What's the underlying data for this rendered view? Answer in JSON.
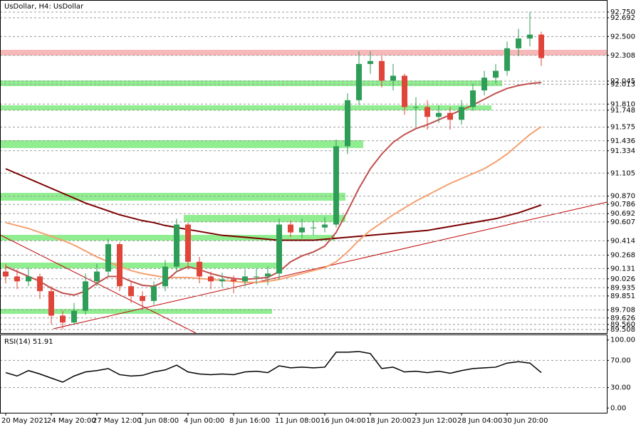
{
  "chart_data": [
    {
      "type": "candlestick",
      "title": "UsDollar, H4:  UsDollar",
      "categories": [
        "20 May 2021",
        null,
        null,
        null,
        "24 May 20:00",
        null,
        null,
        null,
        "27 May 12:00",
        null,
        null,
        null,
        "1 Jun 08:00",
        null,
        null,
        null,
        "4 Jun 00:00",
        null,
        null,
        null,
        "8 Jun 16:00",
        null,
        null,
        null,
        "11 Jun 08:00",
        null,
        null,
        null,
        "16 Jun 04:00",
        null,
        null,
        null,
        "18 Jun 20:00",
        null,
        null,
        null,
        "23 Jun 12:00",
        null,
        null,
        null,
        "28 Jun 04:00",
        null,
        null,
        null,
        "30 Jun 20:00",
        null,
        null,
        null
      ],
      "open": [
        90.1,
        90.05,
        90.0,
        90.05,
        89.9,
        89.65,
        89.58,
        89.7,
        90.0,
        90.1,
        90.38,
        89.95,
        89.85,
        89.8,
        89.95,
        90.15,
        90.58,
        90.2,
        90.05,
        90.0,
        90.02,
        90.0,
        90.05,
        90.05,
        90.08,
        90.58,
        90.5,
        90.55,
        90.55,
        90.58,
        91.38,
        91.85,
        92.22,
        92.25,
        92.05,
        92.1,
        91.78,
        91.78,
        91.68,
        91.72,
        91.65,
        91.78,
        91.95,
        92.08,
        92.15,
        92.38,
        92.48,
        92.52
      ],
      "high": [
        90.18,
        90.12,
        90.14,
        90.08,
        89.95,
        89.7,
        89.78,
        90.08,
        90.18,
        90.43,
        90.4,
        90.0,
        89.9,
        90.0,
        90.22,
        90.64,
        90.6,
        90.25,
        90.1,
        90.09,
        90.06,
        90.12,
        90.13,
        90.15,
        90.64,
        90.62,
        90.64,
        90.62,
        90.66,
        91.45,
        91.92,
        92.35,
        92.35,
        92.3,
        92.22,
        92.12,
        91.88,
        91.85,
        91.8,
        91.78,
        91.85,
        92.02,
        92.15,
        92.22,
        92.45,
        92.58,
        92.75,
        92.55
      ],
      "low": [
        89.98,
        89.92,
        89.95,
        89.82,
        89.56,
        89.51,
        89.55,
        89.66,
        89.95,
        90.05,
        89.9,
        89.78,
        89.71,
        89.76,
        89.9,
        90.1,
        90.12,
        89.98,
        89.92,
        89.94,
        89.88,
        89.95,
        89.97,
        89.96,
        90.02,
        90.45,
        90.44,
        90.47,
        90.5,
        90.55,
        91.3,
        91.8,
        92.12,
        91.98,
        91.95,
        91.7,
        91.58,
        91.55,
        91.62,
        91.55,
        91.6,
        91.74,
        91.9,
        92.02,
        92.1,
        92.3,
        92.4,
        92.2
      ],
      "close": [
        90.05,
        90.0,
        90.05,
        89.9,
        89.65,
        89.58,
        89.7,
        90.0,
        90.1,
        90.38,
        89.95,
        89.85,
        89.8,
        89.95,
        90.15,
        90.58,
        90.2,
        90.05,
        90.0,
        90.02,
        90.0,
        90.05,
        90.05,
        90.08,
        90.58,
        90.5,
        90.55,
        90.55,
        90.58,
        91.38,
        91.85,
        92.22,
        92.25,
        92.05,
        92.1,
        91.78,
        91.78,
        91.68,
        91.72,
        91.65,
        91.78,
        91.95,
        92.08,
        92.15,
        92.38,
        92.48,
        92.52,
        92.28
      ],
      "up_color": "#2e9d57",
      "down_color": "#e0453a",
      "series": [
        {
          "color": "#7a0000",
          "values": [
            91.15,
            91.1,
            91.05,
            91.0,
            90.95,
            90.9,
            90.85,
            90.8,
            90.76,
            90.72,
            90.68,
            90.65,
            90.62,
            90.6,
            90.57,
            90.55,
            90.53,
            90.51,
            90.49,
            90.47,
            90.46,
            90.45,
            90.44,
            90.43,
            90.42,
            90.42,
            90.42,
            90.42,
            90.43,
            90.44,
            90.45,
            90.46,
            90.47,
            90.48,
            90.49,
            90.5,
            90.51,
            90.52,
            90.54,
            90.56,
            90.58,
            90.6,
            90.62,
            90.64,
            90.67,
            90.7,
            90.74,
            90.78
          ]
        },
        {
          "color": "#f5a070",
          "values": [
            90.6,
            90.57,
            90.54,
            90.5,
            90.46,
            90.42,
            90.37,
            90.31,
            90.25,
            90.2,
            90.15,
            90.11,
            90.08,
            90.06,
            90.04,
            90.04,
            90.04,
            90.03,
            90.02,
            90.01,
            90.0,
            89.99,
            89.99,
            90.0,
            90.02,
            90.05,
            90.08,
            90.11,
            90.14,
            90.2,
            90.3,
            90.42,
            90.52,
            90.6,
            90.68,
            90.75,
            90.82,
            90.88,
            90.94,
            91.0,
            91.05,
            91.1,
            91.15,
            91.22,
            91.3,
            91.4,
            91.5,
            91.58
          ]
        },
        {
          "color": "#c0504d",
          "values": [
            90.15,
            90.1,
            90.05,
            90.0,
            89.93,
            89.88,
            89.86,
            89.9,
            89.98,
            90.05,
            90.05,
            90.0,
            89.96,
            89.95,
            90.0,
            90.1,
            90.15,
            90.12,
            90.08,
            90.05,
            90.03,
            90.02,
            90.03,
            90.04,
            90.1,
            90.2,
            90.26,
            90.3,
            90.36,
            90.5,
            90.72,
            90.95,
            91.15,
            91.3,
            91.42,
            91.5,
            91.56,
            91.6,
            91.65,
            91.7,
            91.75,
            91.8,
            91.86,
            91.92,
            91.97,
            92.0,
            92.02,
            92.03
          ]
        }
      ],
      "ylim": [
        89.472,
        92.866
      ],
      "yticks": [
        {
          "value": 92.75,
          "label": "92.750"
        },
        {
          "value": 92.692,
          "label": "92.692"
        },
        {
          "value": 92.5,
          "label": "92.500"
        },
        {
          "value": 92.308,
          "label": "92.308"
        },
        {
          "value": 92.045,
          "label": "92.045"
        },
        {
          "value": 92.013,
          "label": "92.013"
        },
        {
          "value": 91.81,
          "label": "91.810"
        },
        {
          "value": 91.748,
          "label": "91.748"
        },
        {
          "value": 91.575,
          "label": "91.575"
        },
        {
          "value": 91.436,
          "label": "91.436"
        },
        {
          "value": 91.334,
          "label": "91.334"
        },
        {
          "value": 91.105,
          "label": "91.105"
        },
        {
          "value": 90.87,
          "label": "90.870"
        },
        {
          "value": 90.786,
          "label": "90.786"
        },
        {
          "value": 90.692,
          "label": "90.692"
        },
        {
          "value": 90.607,
          "label": "90.607"
        },
        {
          "value": 90.414,
          "label": "90.414"
        },
        {
          "value": 90.268,
          "label": "90.268"
        },
        {
          "value": 90.131,
          "label": "90.131"
        },
        {
          "value": 90.026,
          "label": "90.026"
        },
        {
          "value": 89.935,
          "label": "89.935"
        },
        {
          "value": 89.851,
          "label": "89.851"
        },
        {
          "value": 89.708,
          "label": "89.708"
        },
        {
          "value": 89.626,
          "label": "89.626"
        },
        {
          "value": 89.56,
          "label": "89.560"
        },
        {
          "value": 89.508,
          "label": "89.508"
        }
      ],
      "grid": true
    },
    {
      "type": "line",
      "title": "RSI(14) 51.91",
      "color": "#000000",
      "values": [
        52,
        47,
        55,
        50,
        44,
        38,
        47,
        53,
        55,
        58,
        49,
        47,
        48,
        53,
        56,
        63,
        53,
        50,
        49,
        50,
        49,
        53,
        54,
        52,
        62,
        59,
        60,
        59,
        60,
        82,
        82,
        83,
        80,
        58,
        60,
        53,
        54,
        52,
        54,
        51,
        55,
        58,
        59,
        60,
        66,
        68,
        66,
        52
      ],
      "ylim": [
        -7,
        107
      ],
      "yticks": [
        {
          "value": 100,
          "label": "100.00"
        },
        {
          "value": 70,
          "label": "70.00"
        },
        {
          "value": 30,
          "label": "30.00"
        },
        {
          "value": 0,
          "label": "0.00"
        }
      ],
      "grid_ticks": [
        70,
        30
      ]
    }
  ]
}
